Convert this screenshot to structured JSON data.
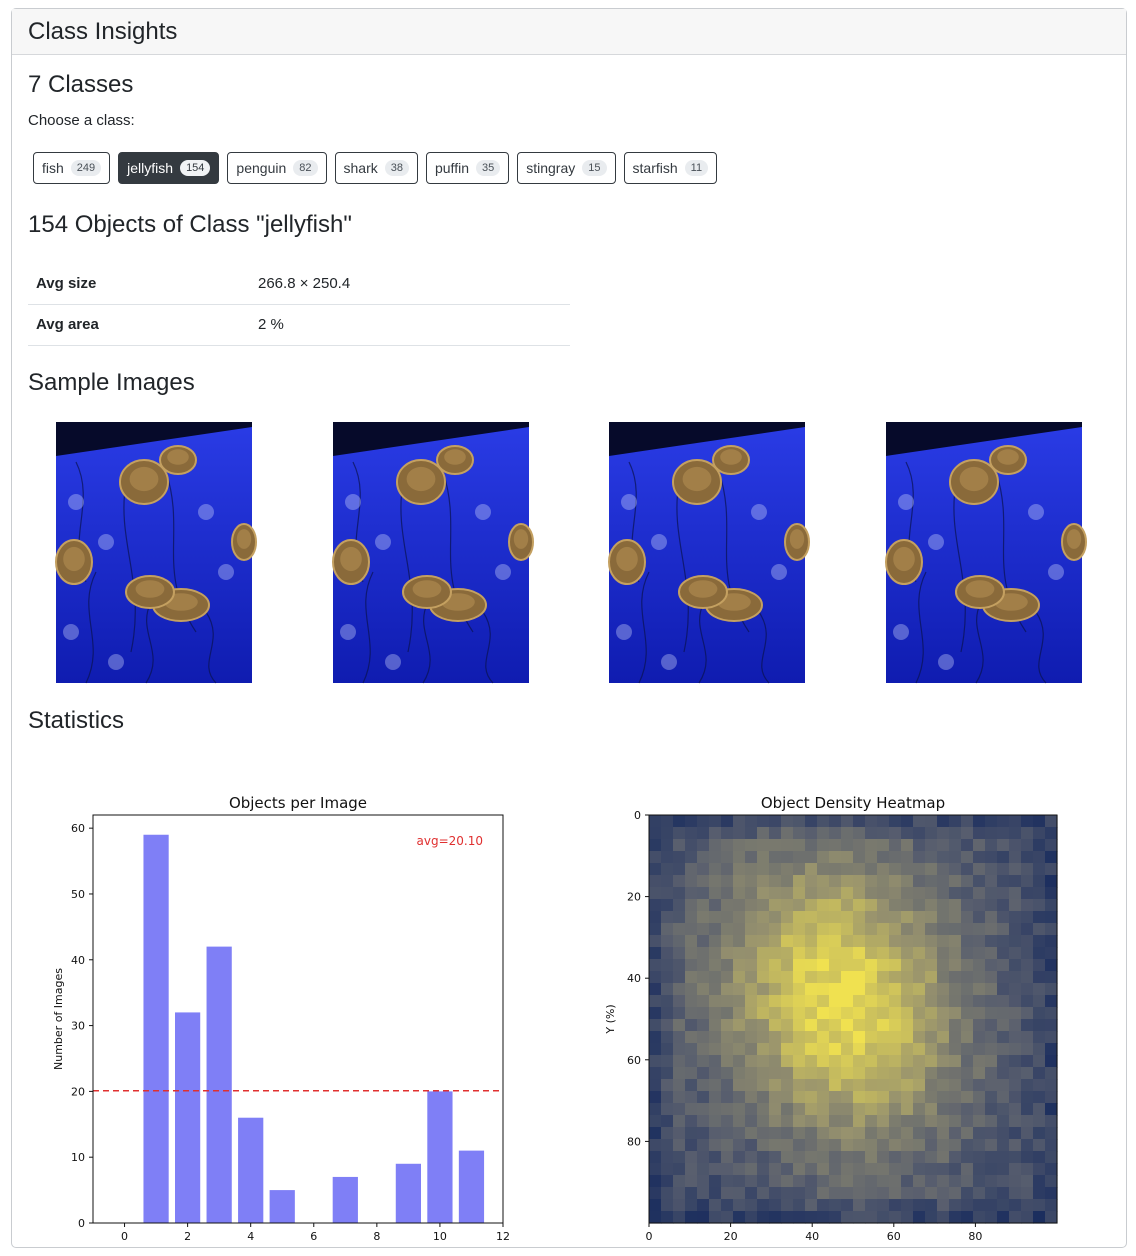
{
  "header": {
    "title": "Class Insights"
  },
  "classes_heading": "7 Classes",
  "choose_label": "Choose a class:",
  "classes": [
    {
      "name": "fish",
      "count": "249",
      "active": false
    },
    {
      "name": "jellyfish",
      "count": "154",
      "active": true
    },
    {
      "name": "penguin",
      "count": "82",
      "active": false
    },
    {
      "name": "shark",
      "count": "38",
      "active": false
    },
    {
      "name": "puffin",
      "count": "35",
      "active": false
    },
    {
      "name": "stingray",
      "count": "15",
      "active": false
    },
    {
      "name": "starfish",
      "count": "11",
      "active": false
    }
  ],
  "objects_heading": "154 Objects of Class \"jellyfish\"",
  "stats": [
    {
      "key": "Avg size",
      "value": "266.8 × 250.4"
    },
    {
      "key": "Avg area",
      "value": "2 %"
    }
  ],
  "samples_heading": "Sample Images",
  "samples_count": 4,
  "statistics_heading": "Statistics",
  "colors": {
    "bar": "#7f7ff6",
    "avg_line": "#e03030",
    "dark": "#343a40",
    "water": "#1f2fd6"
  },
  "chart_data": [
    {
      "type": "bar",
      "title": "Objects per Image",
      "xlabel": "",
      "ylabel": "Number of Images",
      "x": [
        1,
        2,
        3,
        4,
        5,
        7,
        9,
        10,
        11
      ],
      "values": [
        59,
        32,
        42,
        16,
        5,
        7,
        9,
        20,
        11
      ],
      "xlim": [
        -1,
        12
      ],
      "ylim": [
        0,
        62
      ],
      "xticks": [
        0,
        2,
        4,
        6,
        8,
        10,
        12
      ],
      "yticks": [
        0,
        10,
        20,
        30,
        40,
        50,
        60
      ],
      "avg_line": 20.1,
      "avg_label": "avg=20.10",
      "grid": false
    },
    {
      "type": "heatmap",
      "title": "Object Density Heatmap",
      "xlabel": "",
      "ylabel": "Y (%)",
      "xlim": [
        0,
        100
      ],
      "ylim": [
        0,
        100
      ],
      "xticks": [
        0,
        20,
        40,
        60,
        80
      ],
      "yticks": [
        0,
        20,
        40,
        60,
        80
      ],
      "peak": [
        43,
        38
      ]
    }
  ]
}
